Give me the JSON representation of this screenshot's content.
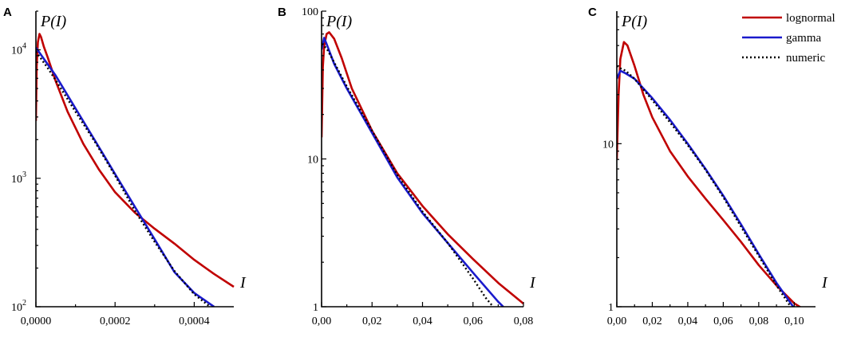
{
  "figure": {
    "legend": [
      {
        "label": "lognormal",
        "color": "#c00000",
        "style": "solid"
      },
      {
        "label": "gamma",
        "color": "#1a1acc",
        "style": "solid"
      },
      {
        "label": "numeric",
        "color": "#000000",
        "style": "dotted"
      }
    ],
    "legend_panel": "C",
    "legend_position": "top-right"
  },
  "chart_data": [
    {
      "type": "line",
      "panel": "A",
      "ylabel": "P(I)",
      "xlabel": "I",
      "yscale": "log",
      "xlim": [
        0,
        0.0005
      ],
      "ylim": [
        100,
        20000
      ],
      "xticks": [
        {
          "v": 0,
          "label": "0,0000"
        },
        {
          "v": 0.0002,
          "label": "0,0002"
        },
        {
          "v": 0.0004,
          "label": "0,0004"
        }
      ],
      "yticks": [
        {
          "v": 100,
          "base": "10",
          "exp": "2"
        },
        {
          "v": 1000,
          "base": "10",
          "exp": "3"
        },
        {
          "v": 10000,
          "base": "10",
          "exp": "4"
        }
      ],
      "series": [
        {
          "name": "lognormal",
          "color": "#c00000",
          "dash": "",
          "points": [
            [
              0,
              2800
            ],
            [
              2e-06,
              7500
            ],
            [
              5e-06,
              11500
            ],
            [
              9e-06,
              13300
            ],
            [
              1.3e-05,
              12600
            ],
            [
              2e-05,
              10600
            ],
            [
              3e-05,
              8700
            ],
            [
              5e-05,
              5700
            ],
            [
              8e-05,
              3300
            ],
            [
              0.00012,
              1850
            ],
            [
              0.00016,
              1160
            ],
            [
              0.0002,
              780
            ],
            [
              0.00025,
              540
            ],
            [
              0.0003,
              405
            ],
            [
              0.00035,
              310
            ],
            [
              0.0004,
              232
            ],
            [
              0.00045,
              180
            ],
            [
              0.0005,
              143
            ]
          ]
        },
        {
          "name": "gamma",
          "color": "#1a1acc",
          "dash": "",
          "points": [
            [
              0,
              10400
            ],
            [
              5e-05,
              6300
            ],
            [
              0.0001,
              3500
            ],
            [
              0.00015,
              1950
            ],
            [
              0.0002,
              1080
            ],
            [
              0.00025,
              600
            ],
            [
              0.0003,
              335
            ],
            [
              0.00035,
              186
            ],
            [
              0.0004,
              128
            ],
            [
              0.00045,
              100
            ]
          ]
        },
        {
          "name": "numeric",
          "color": "#000000",
          "dash": "2,3",
          "points": [
            [
              0,
              9700
            ],
            [
              3e-05,
              7200
            ],
            [
              5e-05,
              5800
            ],
            [
              0.0001,
              3300
            ],
            [
              0.00015,
              1900
            ],
            [
              0.0002,
              1050
            ],
            [
              0.00025,
              560
            ],
            [
              0.0003,
              320
            ],
            [
              0.00035,
              190
            ],
            [
              0.0004,
              125
            ],
            [
              0.00044,
              100
            ]
          ]
        }
      ]
    },
    {
      "type": "line",
      "panel": "B",
      "ylabel": "P(I)",
      "xlabel": "I",
      "yscale": "log",
      "xlim": [
        0,
        0.08
      ],
      "ylim": [
        1,
        100
      ],
      "xticks": [
        {
          "v": 0,
          "label": "0,00"
        },
        {
          "v": 0.02,
          "label": "0,02"
        },
        {
          "v": 0.04,
          "label": "0,04"
        },
        {
          "v": 0.06,
          "label": "0,06"
        },
        {
          "v": 0.08,
          "label": "0,08"
        }
      ],
      "yticks": [
        {
          "v": 1,
          "label": "1"
        },
        {
          "v": 10,
          "label": "10"
        },
        {
          "v": 100,
          "label": "100"
        }
      ],
      "series": [
        {
          "name": "lognormal",
          "color": "#c00000",
          "dash": "",
          "points": [
            [
              0,
              14
            ],
            [
              0.0005,
              42
            ],
            [
              0.001,
              58
            ],
            [
              0.002,
              70
            ],
            [
              0.003,
              72
            ],
            [
              0.005,
              65
            ],
            [
              0.008,
              48
            ],
            [
              0.012,
              30
            ],
            [
              0.02,
              15.5
            ],
            [
              0.03,
              8
            ],
            [
              0.04,
              4.8
            ],
            [
              0.05,
              3.1
            ],
            [
              0.06,
              2.1
            ],
            [
              0.07,
              1.45
            ],
            [
              0.08,
              1.05
            ]
          ]
        },
        {
          "name": "gamma",
          "color": "#1a1acc",
          "dash": "",
          "points": [
            [
              0,
              55
            ],
            [
              0.001,
              66
            ],
            [
              0.002,
              60
            ],
            [
              0.005,
              44
            ],
            [
              0.01,
              30
            ],
            [
              0.02,
              15
            ],
            [
              0.03,
              7.5
            ],
            [
              0.04,
              4.3
            ],
            [
              0.05,
              2.7
            ],
            [
              0.06,
              1.7
            ],
            [
              0.07,
              1.08
            ],
            [
              0.072,
              1
            ]
          ]
        },
        {
          "name": "numeric",
          "color": "#000000",
          "dash": "2,3",
          "points": [
            [
              0,
              60
            ],
            [
              0.002,
              56
            ],
            [
              0.005,
              45
            ],
            [
              0.01,
              31
            ],
            [
              0.02,
              15.5
            ],
            [
              0.03,
              7.8
            ],
            [
              0.04,
              4.4
            ],
            [
              0.05,
              2.7
            ],
            [
              0.06,
              1.55
            ],
            [
              0.065,
              1.15
            ],
            [
              0.068,
              1
            ]
          ]
        }
      ]
    },
    {
      "type": "line",
      "panel": "C",
      "ylabel": "P(I)",
      "xlabel": "I",
      "yscale": "log",
      "xlim": [
        0,
        0.112
      ],
      "ylim": [
        1,
        65
      ],
      "xticks": [
        {
          "v": 0,
          "label": "0,00"
        },
        {
          "v": 0.02,
          "label": "0,02"
        },
        {
          "v": 0.04,
          "label": "0,04"
        },
        {
          "v": 0.06,
          "label": "0,06"
        },
        {
          "v": 0.08,
          "label": "0,08"
        },
        {
          "v": 0.1,
          "label": "0,10"
        }
      ],
      "yticks": [
        {
          "v": 1,
          "label": "1"
        },
        {
          "v": 10,
          "label": "10"
        }
      ],
      "series": [
        {
          "name": "lognormal",
          "color": "#c00000",
          "dash": "",
          "points": [
            [
              0,
              8
            ],
            [
              0.001,
              20
            ],
            [
              0.002,
              33
            ],
            [
              0.004,
              42
            ],
            [
              0.006,
              40
            ],
            [
              0.01,
              30
            ],
            [
              0.015,
              20
            ],
            [
              0.02,
              14.5
            ],
            [
              0.03,
              9
            ],
            [
              0.04,
              6.3
            ],
            [
              0.05,
              4.6
            ],
            [
              0.06,
              3.4
            ],
            [
              0.07,
              2.5
            ],
            [
              0.08,
              1.8
            ],
            [
              0.09,
              1.35
            ],
            [
              0.1,
              1.05
            ],
            [
              0.105,
              0.97
            ]
          ]
        },
        {
          "name": "gamma",
          "color": "#1a1acc",
          "dash": "",
          "points": [
            [
              0,
              25
            ],
            [
              0.002,
              28
            ],
            [
              0.005,
              27
            ],
            [
              0.01,
              25
            ],
            [
              0.02,
              19
            ],
            [
              0.03,
              14
            ],
            [
              0.04,
              10
            ],
            [
              0.05,
              7
            ],
            [
              0.06,
              4.8
            ],
            [
              0.07,
              3.2
            ],
            [
              0.08,
              2.1
            ],
            [
              0.09,
              1.4
            ],
            [
              0.1,
              0.98
            ]
          ]
        },
        {
          "name": "numeric",
          "color": "#000000",
          "dash": "2,3",
          "points": [
            [
              0,
              30
            ],
            [
              0.002,
              29
            ],
            [
              0.005,
              28
            ],
            [
              0.01,
              25
            ],
            [
              0.02,
              18.5
            ],
            [
              0.03,
              13.5
            ],
            [
              0.04,
              9.8
            ],
            [
              0.05,
              6.9
            ],
            [
              0.06,
              4.7
            ],
            [
              0.07,
              3.1
            ],
            [
              0.08,
              2.05
            ],
            [
              0.09,
              1.35
            ],
            [
              0.098,
              1
            ]
          ]
        }
      ]
    }
  ]
}
